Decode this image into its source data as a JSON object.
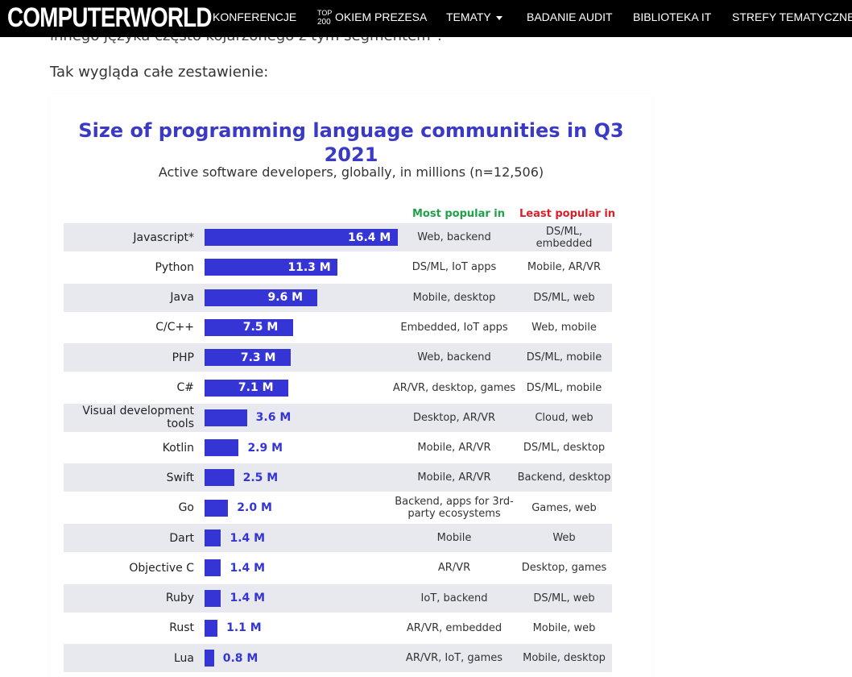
{
  "header": {
    "logo": "COMPUTERWORLD",
    "top200": {
      "top": "TOP",
      "num": "200"
    },
    "nav": [
      {
        "label": "KONFERENCJE"
      },
      {
        "label": "OKIEM PREZESA"
      },
      {
        "label": "TEMATY"
      },
      {
        "label": "BADANIE AUDIT"
      },
      {
        "label": "BIBLIOTEKA IT"
      },
      {
        "label": "STREFY TEMATYCZNE"
      }
    ]
  },
  "article": {
    "cut_text": "innego języka często kojarzonego z tym segmentem\".",
    "lead": "Tak wygląda całe zestawienie:"
  },
  "colors": {
    "bar": "#3535d6",
    "title": "#3a3ac4",
    "most": "#1fa049",
    "least": "#d91f2b",
    "shade": "#e8e8ef"
  },
  "chart_data": {
    "type": "bar",
    "orientation": "horizontal",
    "title": "Size of programming language communities in Q3 2021",
    "subtitle": "Active software developers, globally, in millions (n=12,506)",
    "columns": {
      "most": "Most popular in",
      "least": "Least popular in"
    },
    "unit": "M",
    "max": 16.4,
    "rows": [
      {
        "language": "Javascript*",
        "value": 16.4,
        "label": "16.4 M",
        "most": "Web, backend",
        "least": "DS/ML, embedded"
      },
      {
        "language": "Python",
        "value": 11.3,
        "label": "11.3 M",
        "most": "DS/ML, IoT apps",
        "least": "Mobile, AR/VR"
      },
      {
        "language": "Java",
        "value": 9.6,
        "label": "9.6 M",
        "most": "Mobile, desktop",
        "least": "DS/ML, web"
      },
      {
        "language": "C/C++",
        "value": 7.5,
        "label": "7.5 M",
        "most": "Embedded, IoT apps",
        "least": "Web, mobile"
      },
      {
        "language": "PHP",
        "value": 7.3,
        "label": "7.3 M",
        "most": "Web, backend",
        "least": "DS/ML, mobile"
      },
      {
        "language": "C#",
        "value": 7.1,
        "label": "7.1 M",
        "most": "AR/VR, desktop, games",
        "least": "DS/ML, mobile"
      },
      {
        "language": "Visual development tools",
        "value": 3.6,
        "label": "3.6 M",
        "most": "Desktop, AR/VR",
        "least": "Cloud, web"
      },
      {
        "language": "Kotlin",
        "value": 2.9,
        "label": "2.9 M",
        "most": "Mobile, AR/VR",
        "least": "DS/ML, desktop"
      },
      {
        "language": "Swift",
        "value": 2.5,
        "label": "2.5 M",
        "most": "Mobile, AR/VR",
        "least": "Backend, desktop"
      },
      {
        "language": "Go",
        "value": 2.0,
        "label": "2.0 M",
        "most": "Backend, apps for 3rd-party ecosystems",
        "least": "Games, web"
      },
      {
        "language": "Dart",
        "value": 1.4,
        "label": "1.4 M",
        "most": "Mobile",
        "least": "Web"
      },
      {
        "language": "Objective C",
        "value": 1.4,
        "label": "1.4 M",
        "most": "AR/VR",
        "least": "Desktop, games"
      },
      {
        "language": "Ruby",
        "value": 1.4,
        "label": "1.4 M",
        "most": "IoT, backend",
        "least": "DS/ML, web"
      },
      {
        "language": "Rust",
        "value": 1.1,
        "label": "1.1 M",
        "most": "AR/VR, embedded",
        "least": "Mobile, web"
      },
      {
        "language": "Lua",
        "value": 0.8,
        "label": "0.8 M",
        "most": "AR/VR, IoT, games",
        "least": "Mobile, desktop"
      }
    ]
  }
}
